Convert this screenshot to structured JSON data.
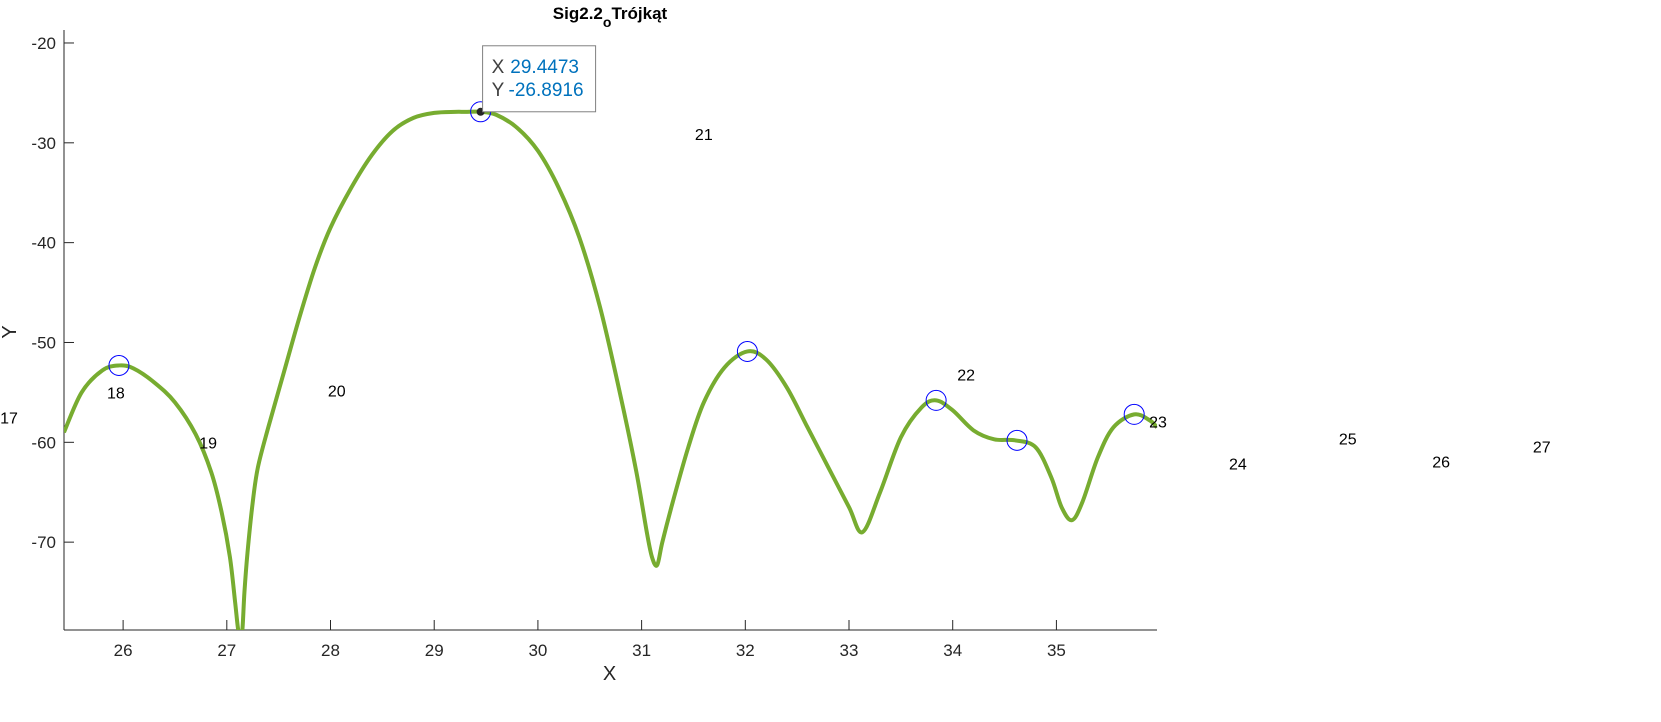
{
  "chart_data": {
    "type": "line",
    "title": "Sig2.2",
    "title_sub": "o",
    "title_after": "Trójkąt",
    "xlabel": "X",
    "ylabel": "Y",
    "xlim": [
      25.43,
      35.97
    ],
    "ylim": [
      -78.8,
      -18.7
    ],
    "xticks": [
      26,
      27,
      28,
      29,
      30,
      31,
      32,
      33,
      34,
      35
    ],
    "yticks": [
      -20,
      -30,
      -40,
      -50,
      -60,
      -70
    ],
    "grid": false,
    "colors": {
      "line": "#77AC30",
      "marker": "#0000FF",
      "axis": "#262626",
      "tip_value": "#0072BD"
    },
    "series": [
      {
        "x": [
          25.43,
          25.6,
          25.8,
          25.96,
          26.1,
          26.3,
          26.5,
          26.7,
          26.85,
          26.95,
          27.03,
          27.08,
          27.11,
          27.13,
          27.15,
          27.17,
          27.2,
          27.25,
          27.3,
          27.4,
          27.55,
          27.7,
          27.85,
          28.0,
          28.2,
          28.4,
          28.6,
          28.8,
          29.0,
          29.2,
          29.3,
          29.4473,
          29.6,
          29.8,
          30.0,
          30.2,
          30.4,
          30.6,
          30.8,
          30.95,
          31.05,
          31.1,
          31.15,
          31.2,
          31.3,
          31.45,
          31.6,
          31.8,
          32.02,
          32.2,
          32.4,
          32.6,
          32.8,
          33.0,
          33.13,
          33.3,
          33.5,
          33.7,
          33.84,
          34.0,
          34.2,
          34.4,
          34.6,
          34.8,
          34.95,
          35.05,
          35.15,
          35.25,
          35.4,
          35.55,
          35.75,
          35.9,
          35.97
        ],
        "y": [
          -59.0,
          -55.0,
          -52.8,
          -52.3,
          -52.6,
          -54.0,
          -56.0,
          -59.2,
          -63.0,
          -67.0,
          -71.5,
          -76.0,
          -78.8,
          -79.0,
          -78.8,
          -75.0,
          -71.0,
          -66.0,
          -62.5,
          -58.5,
          -53.0,
          -47.5,
          -42.5,
          -38.5,
          -34.5,
          -31.2,
          -28.8,
          -27.5,
          -27.0,
          -26.9,
          -26.9,
          -26.8916,
          -27.2,
          -28.5,
          -30.8,
          -34.5,
          -39.5,
          -46.5,
          -55.5,
          -63.0,
          -69.0,
          -71.5,
          -72.3,
          -70.0,
          -66.0,
          -60.5,
          -56.0,
          -52.5,
          -50.9,
          -51.7,
          -54.5,
          -58.5,
          -62.5,
          -66.5,
          -69.0,
          -65.0,
          -59.5,
          -56.5,
          -55.8,
          -56.8,
          -58.8,
          -59.7,
          -59.8,
          -60.5,
          -63.5,
          -66.5,
          -67.8,
          -66.0,
          -61.5,
          -58.5,
          -57.2,
          -57.8,
          -58.5
        ]
      }
    ],
    "markers": [
      {
        "x": 25.96,
        "y": -52.3
      },
      {
        "x": 29.4473,
        "y": -26.8916
      },
      {
        "x": 32.02,
        "y": -50.9
      },
      {
        "x": 33.84,
        "y": -55.8
      },
      {
        "x": 34.62,
        "y": -59.8
      },
      {
        "x": 35.75,
        "y": -57.2
      }
    ],
    "point_labels": [
      {
        "text": "17",
        "x": 24.9,
        "y": -57.5
      },
      {
        "text": "18",
        "x": 25.93,
        "y": -55.0
      },
      {
        "text": "19",
        "x": 26.82,
        "y": -60.0
      },
      {
        "text": "20",
        "x": 28.06,
        "y": -54.8
      },
      {
        "text": "21",
        "x": 31.6,
        "y": -29.1
      },
      {
        "text": "22",
        "x": 34.13,
        "y": -53.2
      },
      {
        "text": "23",
        "x": 35.98,
        "y": -57.9
      },
      {
        "text": "24",
        "x": 36.75,
        "y": -62.1
      },
      {
        "text": "25",
        "x": 37.81,
        "y": -59.6
      },
      {
        "text": "26",
        "x": 38.71,
        "y": -61.9
      },
      {
        "text": "27",
        "x": 39.68,
        "y": -60.4
      }
    ],
    "datatip": {
      "x_label": "X",
      "x_value": "29.4473",
      "y_label": "Y",
      "y_value": "-26.8916",
      "x": 29.4473,
      "y": -26.8916
    }
  }
}
